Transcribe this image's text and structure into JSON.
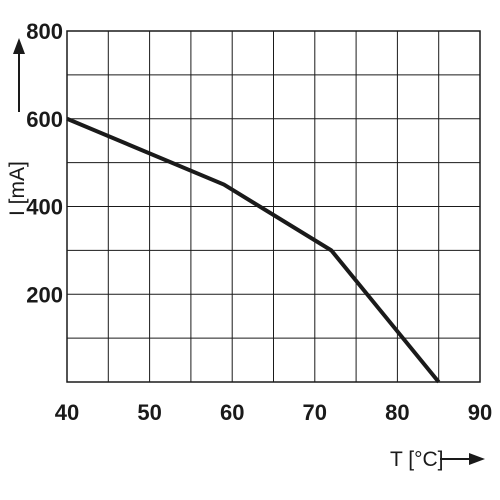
{
  "chart_data": {
    "type": "line",
    "xlabel": "T [°C]",
    "ylabel": "I [mA]",
    "xlim": [
      40,
      90
    ],
    "ylim": [
      0,
      800
    ],
    "x_ticks": [
      40,
      50,
      60,
      70,
      80,
      90
    ],
    "y_ticks": [
      200,
      400,
      600,
      800
    ],
    "x_grid_step": 5,
    "y_grid_step": 100,
    "grid": true,
    "series": [
      {
        "x": [
          40,
          59,
          72,
          85
        ],
        "y": [
          600,
          450,
          300,
          0
        ]
      }
    ]
  }
}
